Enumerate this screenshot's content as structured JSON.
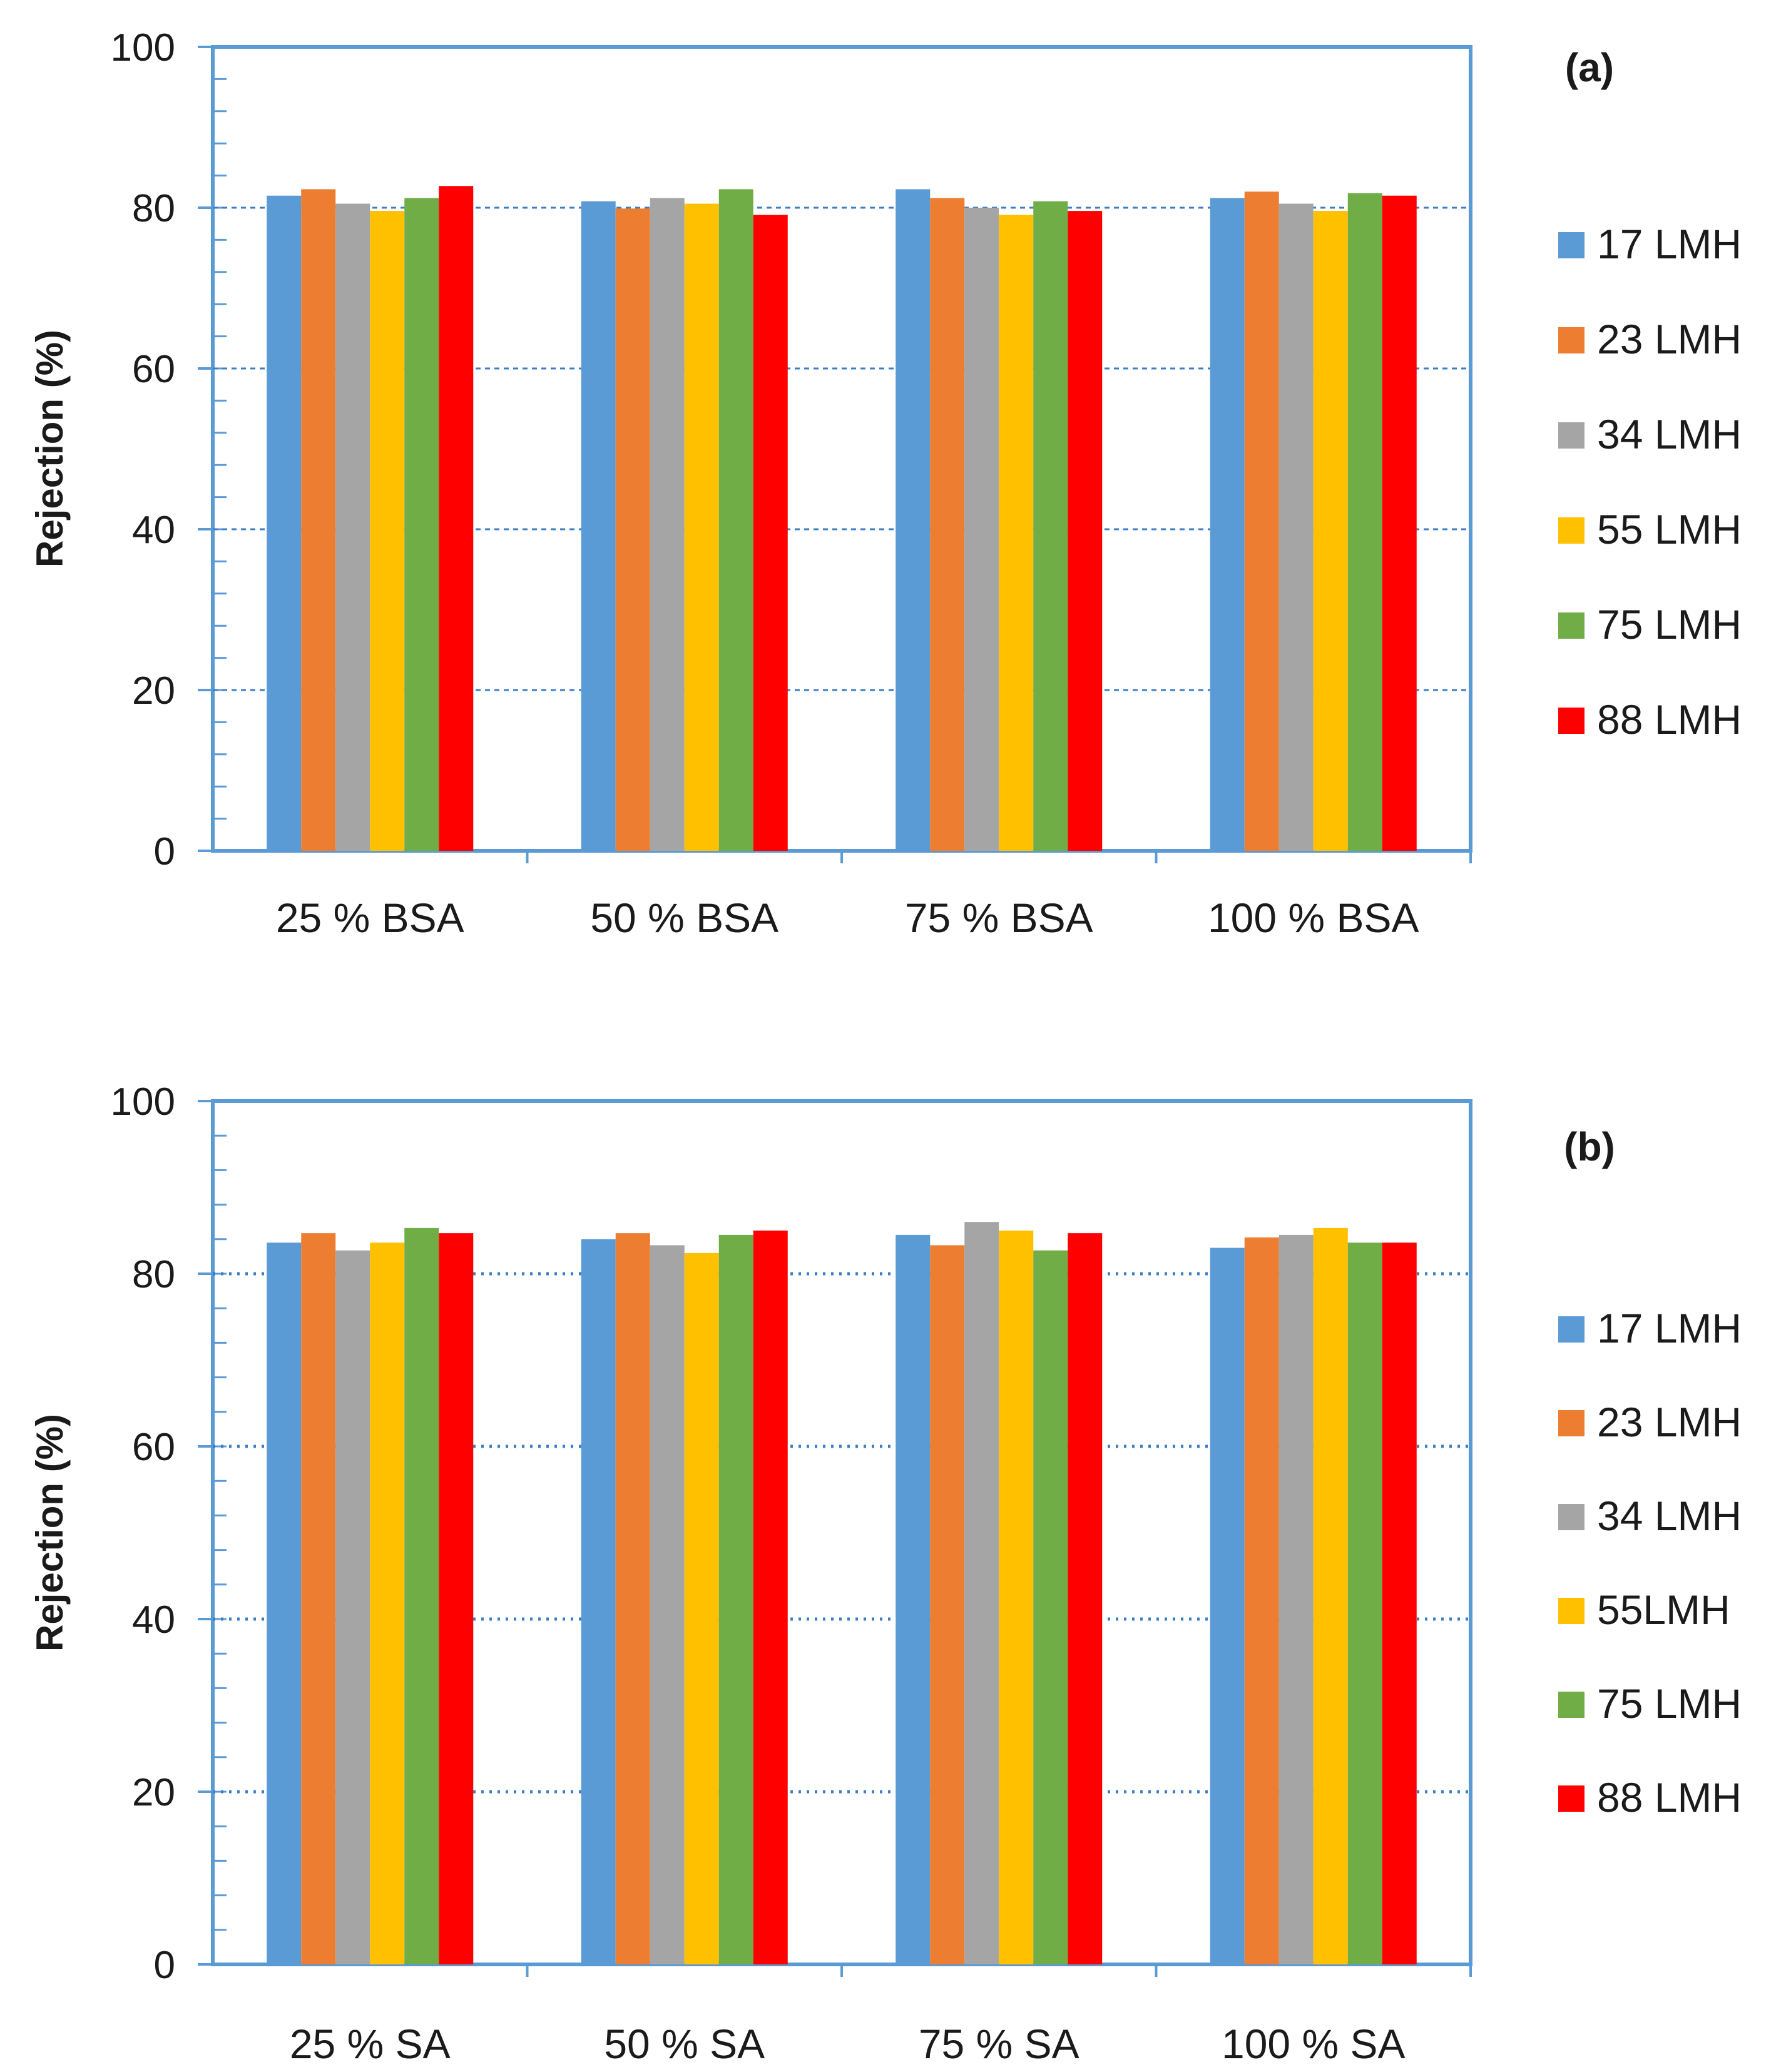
{
  "chart_data": [
    {
      "type": "bar",
      "panel_label": "(a)",
      "ylabel": "Rejection (%)",
      "xlabel": "",
      "ylim": [
        0,
        100
      ],
      "yticks": [
        0,
        20,
        40,
        60,
        80,
        100
      ],
      "grid": true,
      "legend_position": "right",
      "categories": [
        "25 % BSA",
        "50 % BSA",
        "75 % BSA",
        "100 % BSA"
      ],
      "series": [
        {
          "name": "17 LMH",
          "color": "#5B9BD5",
          "values": [
            81.5,
            80.8,
            82.3,
            81.2
          ]
        },
        {
          "name": "23 LMH",
          "color": "#ED7D31",
          "values": [
            82.3,
            79.9,
            81.2,
            82.0
          ]
        },
        {
          "name": "34 LMH",
          "color": "#A5A5A5",
          "values": [
            80.5,
            81.2,
            80.0,
            80.5
          ]
        },
        {
          "name": "55 LMH",
          "color": "#FFC000",
          "values": [
            79.6,
            80.5,
            79.1,
            79.6
          ]
        },
        {
          "name": "75 LMH",
          "color": "#70AD47",
          "values": [
            81.2,
            82.3,
            80.8,
            81.8
          ]
        },
        {
          "name": "88 LMH",
          "color": "#FF0000",
          "values": [
            82.7,
            79.1,
            79.6,
            81.5
          ]
        }
      ]
    },
    {
      "type": "bar",
      "panel_label": "(b)",
      "ylabel": "Rejection (%)",
      "xlabel": "",
      "ylim": [
        0,
        100
      ],
      "yticks": [
        0,
        20,
        40,
        60,
        80,
        100
      ],
      "grid": true,
      "legend_position": "right",
      "categories": [
        "25 % SA",
        "50 % SA",
        "75 % SA",
        "100 % SA"
      ],
      "series": [
        {
          "name": "17 LMH",
          "color": "#5B9BD5",
          "values": [
            83.6,
            84.0,
            84.5,
            83.0
          ]
        },
        {
          "name": "23 LMH",
          "color": "#ED7D31",
          "values": [
            84.7,
            84.7,
            83.3,
            84.2
          ]
        },
        {
          "name": "34 LMH",
          "color": "#A5A5A5",
          "values": [
            82.7,
            83.3,
            86.0,
            84.5
          ]
        },
        {
          "name": "55LMH",
          "color": "#FFC000",
          "values": [
            83.6,
            82.4,
            85.0,
            85.3
          ]
        },
        {
          "name": "75 LMH",
          "color": "#70AD47",
          "values": [
            85.3,
            84.5,
            82.7,
            83.6
          ]
        },
        {
          "name": "88 LMH",
          "color": "#FF0000",
          "values": [
            84.7,
            85.0,
            84.7,
            83.6
          ]
        }
      ]
    }
  ]
}
